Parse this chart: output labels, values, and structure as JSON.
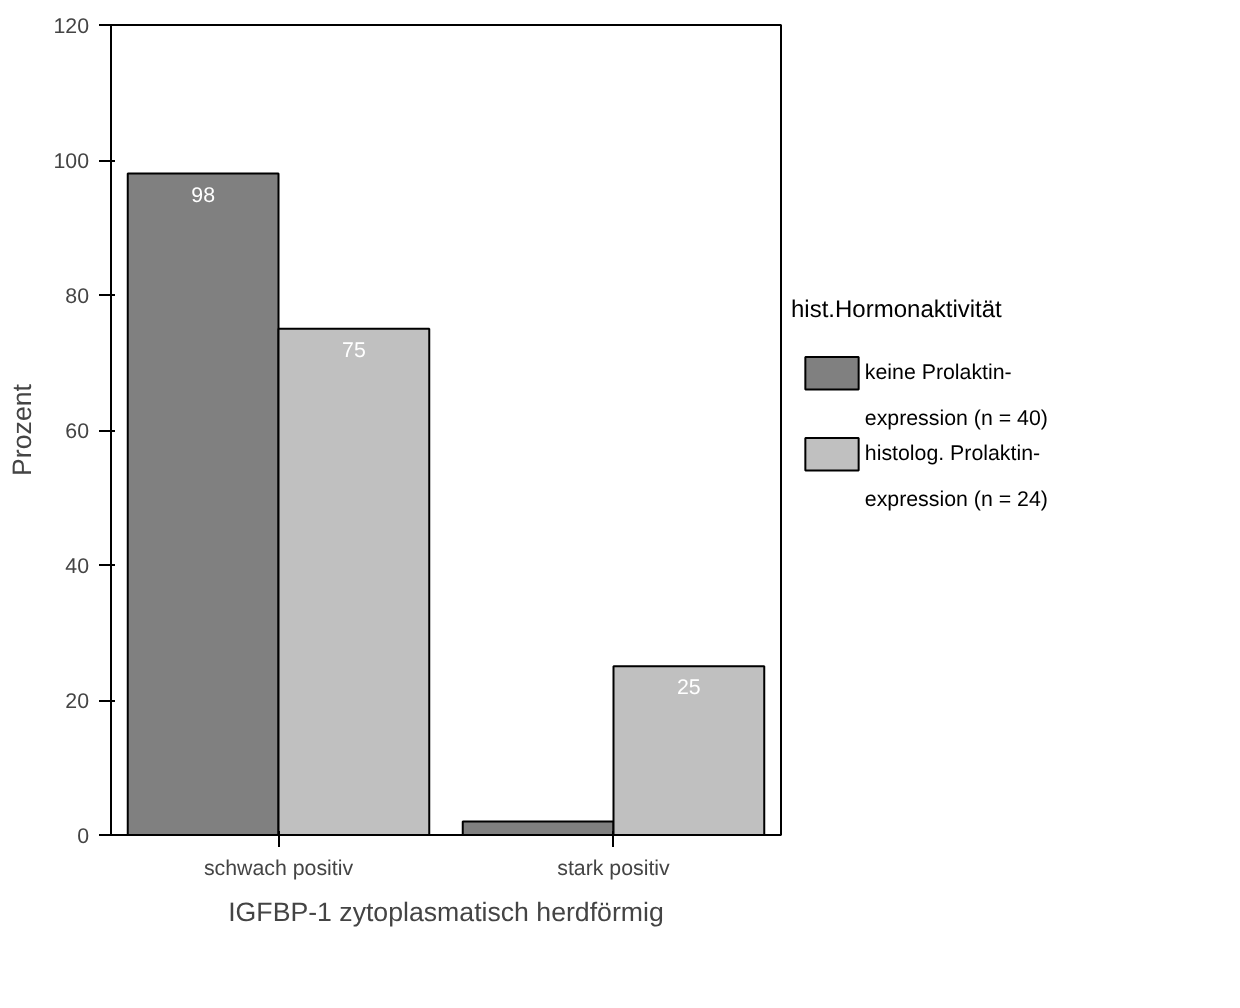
{
  "chart_data": {
    "type": "bar",
    "xlabel": "IGFBP-1 zytoplasmatisch herdförmig",
    "ylabel": "Prozent",
    "legend_title": "hist.Hormonaktivität",
    "categories": [
      "schwach positiv",
      "stark positiv"
    ],
    "series": [
      {
        "name": "keine Prolaktin-\nexpression (n = 40)",
        "color": "#808080",
        "values": [
          98,
          2
        ],
        "value_labels": [
          "98",
          null
        ]
      },
      {
        "name": "histolog. Prolaktin-\nexpression (n = 24)",
        "color": "#c0c0c0",
        "values": [
          75,
          25
        ],
        "value_labels": [
          "75",
          "25"
        ]
      }
    ],
    "ylim": [
      0,
      120
    ],
    "yticks": [
      0,
      20,
      40,
      60,
      80,
      100,
      120
    ],
    "grid": false,
    "legend": "right"
  }
}
